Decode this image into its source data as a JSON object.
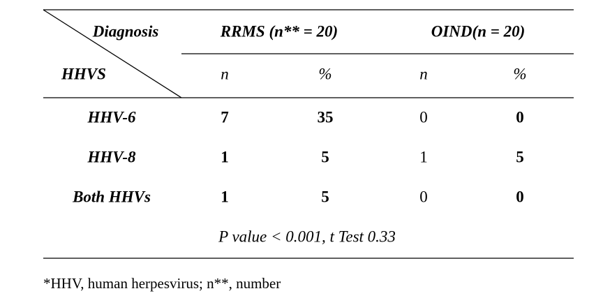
{
  "table": {
    "corner": {
      "top": "Diagnosis",
      "bottom": "HHVS"
    },
    "groups": [
      "RRMS (n** = 20)",
      "OIND(n = 20)"
    ],
    "subheaders": [
      "n",
      "%",
      "n",
      "%"
    ],
    "rows": [
      [
        "HHV-6",
        7,
        35,
        0,
        0
      ],
      [
        "HHV-8",
        1,
        5,
        1,
        5
      ],
      [
        "Both HHVs",
        1,
        5,
        0,
        0
      ]
    ],
    "summary": "P value < 0.001, t Test 0.33"
  },
  "footnote": "*HHV, human herpesvirus; n**, number"
}
